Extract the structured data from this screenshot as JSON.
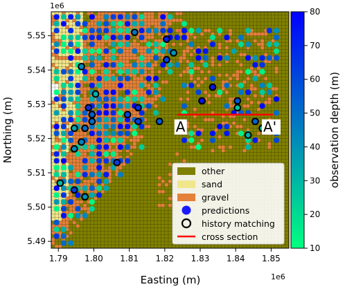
{
  "chart_data": {
    "type": "scatter",
    "xlabel": "Easting (m)",
    "ylabel": "Northing (m)",
    "x_exponent": "1e6",
    "y_exponent": "1e6",
    "xlim": [
      1.788,
      1.855
    ],
    "ylim": [
      5.488,
      5.557
    ],
    "xticks": [
      1.79,
      1.8,
      1.81,
      1.82,
      1.83,
      1.84,
      1.85
    ],
    "yticks": [
      5.49,
      5.5,
      5.51,
      5.52,
      5.53,
      5.54,
      5.55
    ],
    "grid_cell": 0.001,
    "colorbar": {
      "label": "observation depth (m)",
      "min": 10,
      "max": 80,
      "ticks": [
        10,
        20,
        30,
        40,
        50,
        60,
        70,
        80
      ],
      "colormap": "winter_r",
      "color_low": "#00ff80",
      "color_high": "#0000ff"
    },
    "facies_colors": {
      "other": "#808000",
      "sand": "#f0e68c",
      "gravel": "#e4803a"
    },
    "legend": {
      "placement": "lower-right",
      "entries": [
        {
          "label": "other",
          "kind": "patch",
          "color": "#808000"
        },
        {
          "label": "sand",
          "kind": "patch",
          "color": "#f0e68c"
        },
        {
          "label": "gravel",
          "kind": "patch",
          "color": "#e4803a"
        },
        {
          "label": "predictions",
          "kind": "marker",
          "color": "#0000ff"
        },
        {
          "label": "history matching",
          "kind": "ring",
          "color": "#000000"
        },
        {
          "label": "cross section",
          "kind": "line",
          "color": "#ff0000"
        }
      ]
    },
    "cross_section": {
      "x": [
        1.8235,
        1.8505
      ],
      "y": [
        5.527,
        5.527
      ],
      "label_start": "A",
      "label_end": "A'",
      "color": "#ff0000"
    },
    "history_matching_wells": [
      [
        1.7965,
        5.541
      ],
      [
        1.8115,
        5.551
      ],
      [
        1.8205,
        5.549
      ],
      [
        1.8225,
        5.545
      ],
      [
        1.8205,
        5.543
      ],
      [
        1.8005,
        5.533
      ],
      [
        1.7985,
        5.529
      ],
      [
        1.8125,
        5.529
      ],
      [
        1.8095,
        5.527
      ],
      [
        1.7995,
        5.527
      ],
      [
        1.7995,
        5.525
      ],
      [
        1.8125,
        5.525
      ],
      [
        1.8185,
        5.525
      ],
      [
        1.7945,
        5.523
      ],
      [
        1.7975,
        5.523
      ],
      [
        1.7965,
        5.519
      ],
      [
        1.7945,
        5.517
      ],
      [
        1.8335,
        5.535
      ],
      [
        1.8305,
        5.531
      ],
      [
        1.8405,
        5.531
      ],
      [
        1.8405,
        5.529
      ],
      [
        1.8455,
        5.525
      ],
      [
        1.8475,
        5.523
      ],
      [
        1.8435,
        5.521
      ],
      [
        1.8065,
        5.513
      ],
      [
        1.7905,
        5.507
      ],
      [
        1.7945,
        5.505
      ],
      [
        1.7975,
        5.503
      ]
    ],
    "prediction_points_note": "dense set of observation-depth-coloured prediction points (~500) over the gravel/sand zones"
  }
}
